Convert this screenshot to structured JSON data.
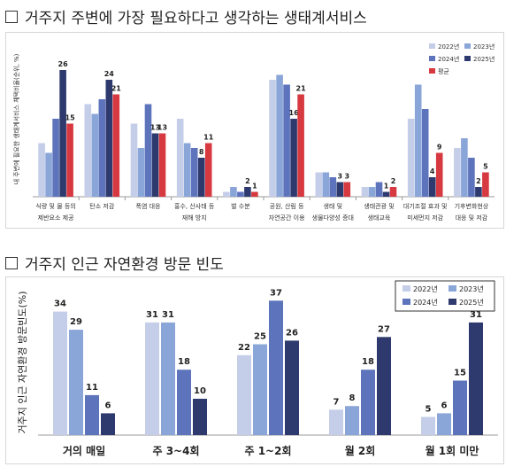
{
  "top": {
    "heading": "거주지 주변에 가장 필요하다고 생각하는 생태계서비스",
    "chart_data": {
      "type": "bar",
      "ylabel": "내 주변에 필요한 생태계서비스 체택비율(순위, %)",
      "categories": [
        [
          "식량 및 물 등의",
          "제반요소 제공"
        ],
        [
          "탄소 저감"
        ],
        [
          "폭염 대응"
        ],
        [
          "홍수, 산사태 등",
          "재해 방지"
        ],
        [
          "벌 수분"
        ],
        [
          "공원, 산림 등",
          "자연공간 이용"
        ],
        [
          "생태 및",
          "생물다양성 증대"
        ],
        [
          "생태관광 및",
          "생태교육"
        ],
        [
          "대기조절 효과 및",
          "미세먼지 저감"
        ],
        [
          "기후변화현상",
          "대응 및 저감"
        ]
      ],
      "series": [
        {
          "name": "2022년",
          "color": "#c5cee8",
          "values": [
            11,
            19,
            15,
            16,
            1,
            24,
            5,
            2,
            16,
            10
          ]
        },
        {
          "name": "2023년",
          "color": "#8aa6d8",
          "values": [
            9,
            17,
            10,
            11,
            2,
            25,
            5,
            2,
            23,
            12
          ]
        },
        {
          "name": "2024년",
          "color": "#5d74bd",
          "values": [
            16,
            20,
            19,
            10,
            1,
            23,
            4,
            3,
            18,
            8
          ]
        },
        {
          "name": "2025년",
          "color": "#2e3a6e",
          "values": [
            26,
            24,
            13,
            8,
            2,
            16,
            3,
            1,
            4,
            2
          ]
        },
        {
          "name": "평균",
          "color": "#d6393f",
          "values": [
            15,
            21,
            13,
            11,
            1,
            21,
            3,
            2,
            9,
            5
          ]
        }
      ],
      "data_labels": {
        "series": [
          3,
          4
        ]
      },
      "ylim": [
        0,
        30
      ]
    }
  },
  "bottom": {
    "heading": "거주지 인근 자연환경 방문 빈도",
    "chart_data": {
      "type": "bar",
      "ylabel": "거주지 인근 자연환경 방문빈도(%)",
      "categories": [
        "거의 매일",
        "주 3~4회",
        "주 1~2회",
        "월 2회",
        "월 1회 미만"
      ],
      "series": [
        {
          "name": "2022년",
          "color": "#c5cee8",
          "values": [
            34,
            31,
            22,
            7,
            5
          ]
        },
        {
          "name": "2023년",
          "color": "#8aa6d8",
          "values": [
            29,
            31,
            25,
            8,
            6
          ]
        },
        {
          "name": "2024년",
          "color": "#5d74bd",
          "values": [
            11,
            18,
            37,
            18,
            15
          ]
        },
        {
          "name": "2025년",
          "color": "#2e3a6e",
          "values": [
            6,
            10,
            26,
            27,
            31
          ]
        }
      ],
      "ylim": [
        0,
        40
      ]
    }
  }
}
